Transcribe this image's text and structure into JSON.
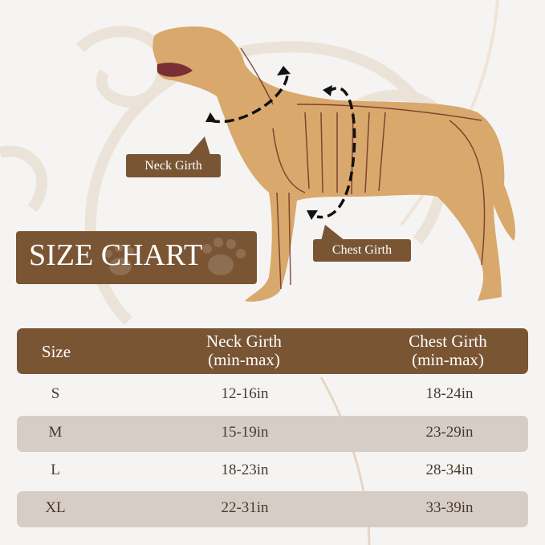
{
  "title": "SIZE CHART",
  "labels": {
    "neck": "Neck Girth",
    "chest": "Chest Girth"
  },
  "colors": {
    "brand_brown": "#7a5534",
    "band": "#d6cec6",
    "background": "#f5f4f3"
  },
  "table": {
    "headers": [
      {
        "line1": "Size",
        "line2": ""
      },
      {
        "line1": "Neck Girth",
        "line2": "(min-max)"
      },
      {
        "line1": "Chest Girth",
        "line2": "(min-max)"
      }
    ],
    "rows": [
      {
        "size": "S",
        "neck": "12-16in",
        "chest": "18-24in"
      },
      {
        "size": "M",
        "neck": "15-19in",
        "chest": "23-29in"
      },
      {
        "size": "L",
        "neck": "18-23in",
        "chest": "28-34in"
      },
      {
        "size": "XL",
        "neck": "22-31in",
        "chest": "33-39in"
      }
    ]
  }
}
